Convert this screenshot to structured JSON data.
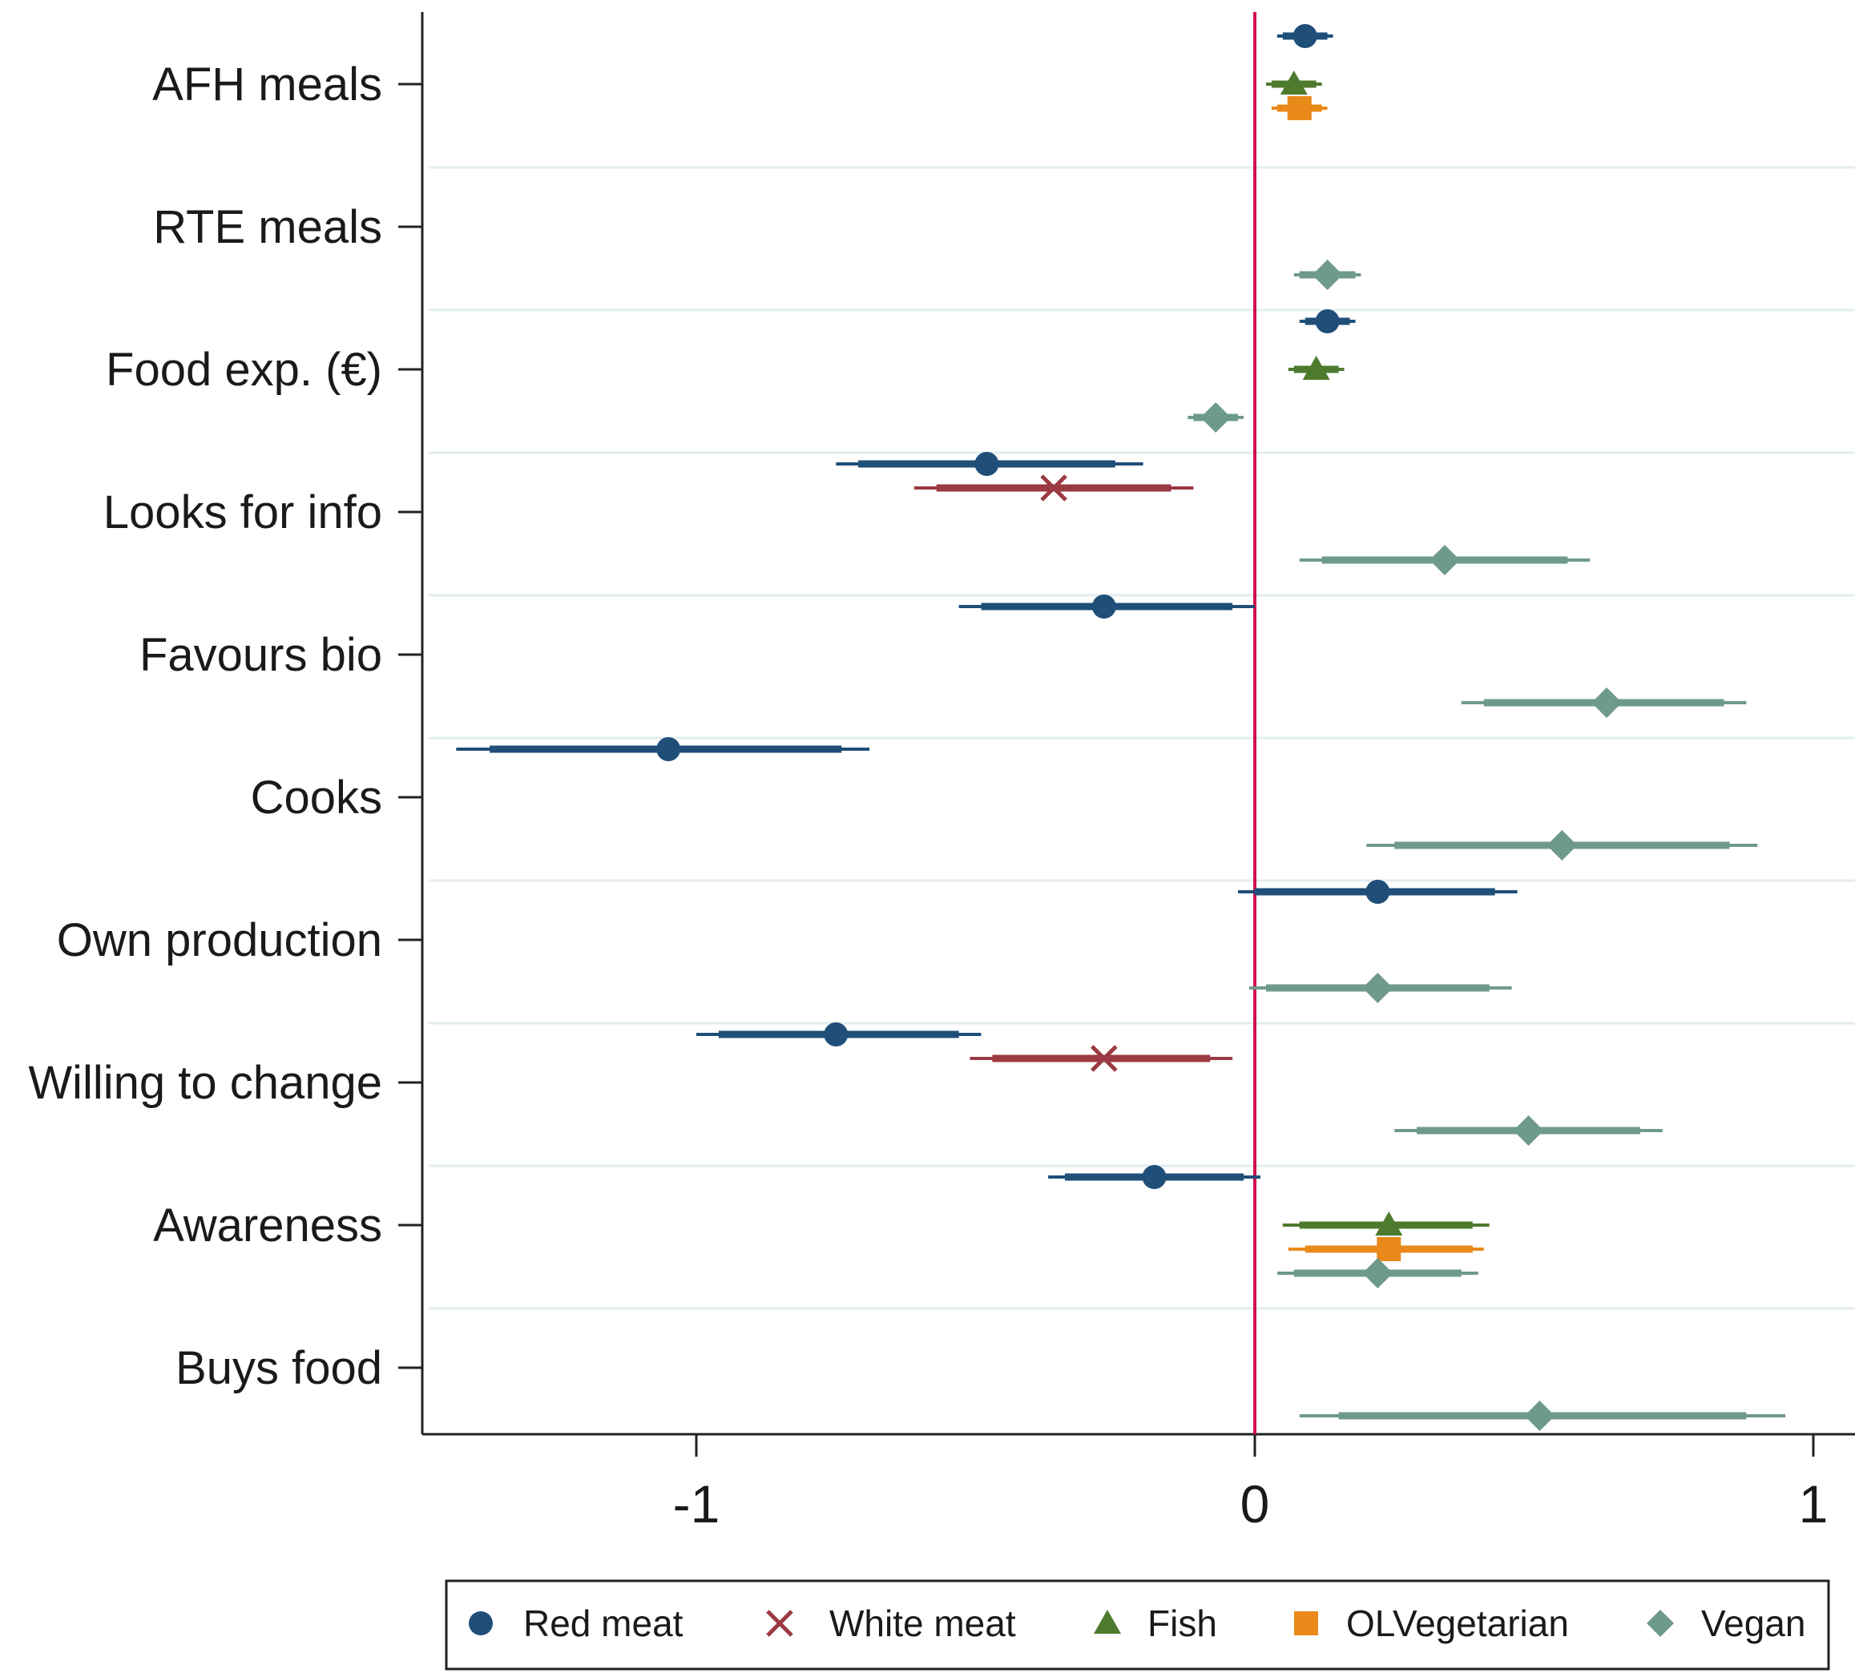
{
  "chart_data": {
    "type": "scatter",
    "subtype": "coefficient-plot",
    "title": "",
    "xlabel": "",
    "ylabel": "",
    "xlim": [
      -1.5,
      1.07
    ],
    "xticks": [
      {
        "value": -1,
        "label": "-1"
      },
      {
        "value": 0,
        "label": "0"
      },
      {
        "value": 1,
        "label": "1"
      }
    ],
    "reference_line": 0,
    "categories": [
      "AFH meals",
      "RTE meals",
      "Food exp. (€)",
      "Looks for info",
      "Favours bio",
      "Cooks",
      "Own production",
      "Willing to change",
      "Awareness",
      "Buys food"
    ],
    "series": [
      {
        "name": "Red meat",
        "color": "#1f4e79",
        "marker": "circle"
      },
      {
        "name": "White meat",
        "color": "#9b3a42",
        "marker": "x"
      },
      {
        "name": "Fish",
        "color": "#4e7a2e",
        "marker": "triangle"
      },
      {
        "name": "OLVegetarian",
        "color": "#e8891a",
        "marker": "square"
      },
      {
        "name": "Vegan",
        "color": "#6e9a8c",
        "marker": "diamond"
      }
    ],
    "points": [
      {
        "category": "AFH meals",
        "series": "Red meat",
        "slot": 0,
        "est": 0.09,
        "ci90": [
          0.05,
          0.13
        ],
        "ci95": [
          0.04,
          0.14
        ]
      },
      {
        "category": "AFH meals",
        "series": "Fish",
        "slot": 2,
        "est": 0.07,
        "ci90": [
          0.03,
          0.11
        ],
        "ci95": [
          0.02,
          0.12
        ]
      },
      {
        "category": "AFH meals",
        "series": "OLVegetarian",
        "slot": 3,
        "est": 0.08,
        "ci90": [
          0.04,
          0.12
        ],
        "ci95": [
          0.03,
          0.13
        ]
      },
      {
        "category": "RTE meals",
        "series": "Vegan",
        "slot": 4,
        "est": 0.13,
        "ci90": [
          0.08,
          0.18
        ],
        "ci95": [
          0.07,
          0.19
        ]
      },
      {
        "category": "Food exp. (€)",
        "series": "Red meat",
        "slot": 0,
        "est": 0.13,
        "ci90": [
          0.09,
          0.17
        ],
        "ci95": [
          0.08,
          0.18
        ]
      },
      {
        "category": "Food exp. (€)",
        "series": "Fish",
        "slot": 2,
        "est": 0.11,
        "ci90": [
          0.07,
          0.15
        ],
        "ci95": [
          0.06,
          0.16
        ]
      },
      {
        "category": "Food exp. (€)",
        "series": "Vegan",
        "slot": 4,
        "est": -0.07,
        "ci90": [
          -0.11,
          -0.03
        ],
        "ci95": [
          -0.12,
          -0.02
        ]
      },
      {
        "category": "Looks for info",
        "series": "Red meat",
        "slot": 0,
        "est": -0.48,
        "ci90": [
          -0.71,
          -0.25
        ],
        "ci95": [
          -0.75,
          -0.2
        ]
      },
      {
        "category": "Looks for info",
        "series": "White meat",
        "slot": 1,
        "est": -0.36,
        "ci90": [
          -0.57,
          -0.15
        ],
        "ci95": [
          -0.61,
          -0.11
        ]
      },
      {
        "category": "Looks for info",
        "series": "Vegan",
        "slot": 4,
        "est": 0.34,
        "ci90": [
          0.12,
          0.56
        ],
        "ci95": [
          0.08,
          0.6
        ]
      },
      {
        "category": "Favours bio",
        "series": "Red meat",
        "slot": 0,
        "est": -0.27,
        "ci90": [
          -0.49,
          -0.04
        ],
        "ci95": [
          -0.53,
          0.0
        ]
      },
      {
        "category": "Favours bio",
        "series": "Vegan",
        "slot": 4,
        "est": 0.63,
        "ci90": [
          0.41,
          0.84
        ],
        "ci95": [
          0.37,
          0.88
        ]
      },
      {
        "category": "Cooks",
        "series": "Red meat",
        "slot": 0,
        "est": -1.05,
        "ci90": [
          -1.37,
          -0.74
        ],
        "ci95": [
          -1.43,
          -0.69
        ]
      },
      {
        "category": "Cooks",
        "series": "Vegan",
        "slot": 4,
        "est": 0.55,
        "ci90": [
          0.25,
          0.85
        ],
        "ci95": [
          0.2,
          0.9
        ]
      },
      {
        "category": "Own production",
        "series": "Red meat",
        "slot": 0,
        "est": 0.22,
        "ci90": [
          0.0,
          0.43
        ],
        "ci95": [
          -0.03,
          0.47
        ]
      },
      {
        "category": "Own production",
        "series": "Vegan",
        "slot": 4,
        "est": 0.22,
        "ci90": [
          0.02,
          0.42
        ],
        "ci95": [
          -0.01,
          0.46
        ]
      },
      {
        "category": "Willing to change",
        "series": "Red meat",
        "slot": 0,
        "est": -0.75,
        "ci90": [
          -0.96,
          -0.53
        ],
        "ci95": [
          -1.0,
          -0.49
        ]
      },
      {
        "category": "Willing to change",
        "series": "White meat",
        "slot": 1,
        "est": -0.27,
        "ci90": [
          -0.47,
          -0.08
        ],
        "ci95": [
          -0.51,
          -0.04
        ]
      },
      {
        "category": "Willing to change",
        "series": "Vegan",
        "slot": 4,
        "est": 0.49,
        "ci90": [
          0.29,
          0.69
        ],
        "ci95": [
          0.25,
          0.73
        ]
      },
      {
        "category": "Awareness",
        "series": "Red meat",
        "slot": 0,
        "est": -0.18,
        "ci90": [
          -0.34,
          -0.02
        ],
        "ci95": [
          -0.37,
          0.01
        ]
      },
      {
        "category": "Awareness",
        "series": "Fish",
        "slot": 2,
        "est": 0.24,
        "ci90": [
          0.08,
          0.39
        ],
        "ci95": [
          0.05,
          0.42
        ]
      },
      {
        "category": "Awareness",
        "series": "OLVegetarian",
        "slot": 3,
        "est": 0.24,
        "ci90": [
          0.09,
          0.39
        ],
        "ci95": [
          0.06,
          0.41
        ]
      },
      {
        "category": "Awareness",
        "series": "Vegan",
        "slot": 4,
        "est": 0.22,
        "ci90": [
          0.07,
          0.37
        ],
        "ci95": [
          0.04,
          0.4
        ]
      },
      {
        "category": "Buys food",
        "series": "Vegan",
        "slot": 4,
        "est": 0.51,
        "ci90": [
          0.15,
          0.88
        ],
        "ci95": [
          0.08,
          0.95
        ]
      }
    ],
    "legend_position": "bottom",
    "grid": true
  }
}
